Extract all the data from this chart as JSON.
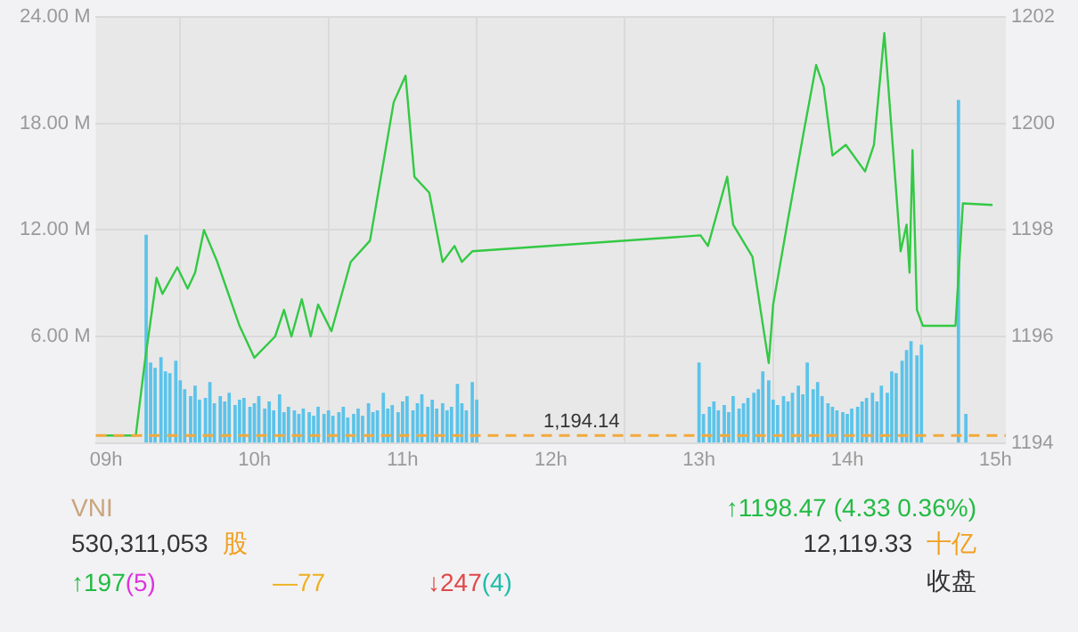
{
  "chart_data": {
    "type": "bar",
    "xlim": [
      8.93,
      15.07
    ],
    "xticks": [
      {
        "value": 9,
        "label": "09h"
      },
      {
        "value": 10,
        "label": "10h"
      },
      {
        "value": 11,
        "label": "11h"
      },
      {
        "value": 12,
        "label": "12h"
      },
      {
        "value": 13,
        "label": "13h"
      },
      {
        "value": 14,
        "label": "14h"
      },
      {
        "value": 15,
        "label": "15h"
      }
    ],
    "ylim": [
      0,
      24
    ],
    "yticks": [
      {
        "value": 0,
        "label": null
      },
      {
        "value": 6,
        "label": "6.00 M"
      },
      {
        "value": 12,
        "label": "12.00 M"
      },
      {
        "value": 18,
        "label": "18.00 M"
      },
      {
        "value": 24,
        "label": "24.00 M"
      }
    ],
    "y2lim": [
      1194,
      1202
    ],
    "y2ticks": [
      1194,
      1196,
      1198,
      1200,
      1202
    ],
    "grid": true,
    "legend": false,
    "marker": "none",
    "series": [
      {
        "axis": "y",
        "color": "#5bc3ea",
        "x": [
          9.27,
          9.3,
          9.33,
          9.37,
          9.4,
          9.43,
          9.47,
          9.5,
          9.53,
          9.57,
          9.6,
          9.63,
          9.67,
          9.7,
          9.73,
          9.77,
          9.8,
          9.83,
          9.87,
          9.9,
          9.93,
          9.97,
          10.0,
          10.03,
          10.07,
          10.1,
          10.13,
          10.17,
          10.2,
          10.23,
          10.27,
          10.3,
          10.33,
          10.37,
          10.4,
          10.43,
          10.47,
          10.5,
          10.53,
          10.57,
          10.6,
          10.63,
          10.67,
          10.7,
          10.73,
          10.77,
          10.8,
          10.83,
          10.87,
          10.9,
          10.93,
          10.97,
          11.0,
          11.03,
          11.07,
          11.1,
          11.13,
          11.17,
          11.2,
          11.23,
          11.27,
          11.3,
          11.33,
          11.37,
          11.4,
          11.43,
          11.47,
          11.5,
          13.0,
          13.03,
          13.07,
          13.1,
          13.13,
          13.17,
          13.2,
          13.23,
          13.27,
          13.3,
          13.33,
          13.37,
          13.4,
          13.43,
          13.47,
          13.5,
          13.53,
          13.57,
          13.6,
          13.63,
          13.67,
          13.7,
          13.73,
          13.77,
          13.8,
          13.83,
          13.87,
          13.9,
          13.93,
          13.97,
          14.0,
          14.03,
          14.07,
          14.1,
          14.13,
          14.17,
          14.2,
          14.23,
          14.27,
          14.3,
          14.33,
          14.37,
          14.4,
          14.43,
          14.47,
          14.5,
          14.75,
          14.8
        ],
        "values": [
          11.7,
          4.5,
          4.2,
          4.8,
          4.0,
          3.9,
          4.6,
          3.5,
          3.0,
          2.6,
          3.2,
          2.4,
          2.5,
          3.4,
          2.2,
          2.6,
          2.3,
          2.8,
          2.1,
          2.4,
          2.5,
          2.0,
          2.2,
          2.6,
          1.9,
          2.3,
          1.8,
          2.7,
          1.7,
          2.0,
          1.8,
          1.6,
          1.9,
          1.7,
          1.5,
          2.0,
          1.6,
          1.8,
          1.5,
          1.7,
          2.0,
          1.4,
          1.6,
          1.9,
          1.5,
          2.2,
          1.7,
          1.8,
          2.8,
          1.9,
          2.1,
          1.7,
          2.3,
          2.6,
          1.8,
          2.2,
          2.7,
          2.0,
          2.4,
          1.9,
          2.2,
          1.8,
          2.0,
          3.3,
          2.2,
          1.8,
          3.4,
          2.4,
          4.5,
          1.6,
          2.0,
          2.3,
          1.8,
          2.1,
          1.7,
          2.6,
          1.9,
          2.2,
          2.5,
          2.8,
          3.0,
          4.0,
          3.5,
          2.4,
          2.1,
          2.6,
          2.3,
          2.8,
          3.2,
          2.7,
          4.5,
          3.0,
          3.4,
          2.6,
          2.2,
          2.0,
          1.8,
          1.7,
          1.6,
          1.9,
          2.0,
          2.3,
          2.5,
          2.8,
          2.3,
          3.2,
          2.8,
          4.0,
          3.9,
          4.6,
          5.2,
          5.7,
          4.9,
          5.5,
          19.3,
          1.6
        ]
      },
      {
        "type": "line",
        "axis": "y2",
        "color": "#33c944",
        "line_style": "solid",
        "x": [
          9.0,
          9.2,
          9.26,
          9.34,
          9.38,
          9.48,
          9.55,
          9.6,
          9.66,
          9.75,
          9.9,
          10.0,
          10.14,
          10.2,
          10.25,
          10.32,
          10.38,
          10.43,
          10.52,
          10.65,
          10.78,
          10.94,
          11.02,
          11.08,
          11.18,
          11.27,
          11.35,
          11.4,
          11.47,
          13.01,
          13.06,
          13.19,
          13.23,
          13.36,
          13.47,
          13.5,
          13.6,
          13.71,
          13.79,
          13.84,
          13.9,
          13.99,
          14.12,
          14.18,
          14.25,
          14.36,
          14.4,
          14.42,
          14.44,
          14.47,
          14.51,
          14.73,
          14.78,
          14.98
        ],
        "values": [
          1194.14,
          1194.14,
          1195.5,
          1197.1,
          1196.8,
          1197.3,
          1196.9,
          1197.2,
          1198.0,
          1197.4,
          1196.2,
          1195.6,
          1196.0,
          1196.5,
          1196.0,
          1196.7,
          1196.0,
          1196.6,
          1196.1,
          1197.4,
          1197.8,
          1200.4,
          1200.9,
          1199.0,
          1198.7,
          1197.4,
          1197.7,
          1197.4,
          1197.6,
          1197.9,
          1197.7,
          1199.0,
          1198.1,
          1197.5,
          1195.5,
          1196.6,
          1198.2,
          1199.9,
          1201.1,
          1200.7,
          1199.4,
          1199.6,
          1199.1,
          1199.6,
          1201.7,
          1197.6,
          1198.1,
          1197.2,
          1199.5,
          1196.5,
          1196.2,
          1196.2,
          1198.5,
          1198.47
        ]
      }
    ],
    "ref_lines": [
      {
        "axis": "y2",
        "value": 1194.14,
        "label": "1,194.14",
        "color": "#f2a93b",
        "line_style": "dashed"
      }
    ],
    "annotations": [
      "VNI",
      "530,311,053",
      "股",
      "↑197",
      "(5)",
      "—77",
      "↓247",
      "(4)",
      "↑1198.47 (4.33 0.36%)",
      "12,119.33",
      "十亿",
      "收盘"
    ]
  }
}
